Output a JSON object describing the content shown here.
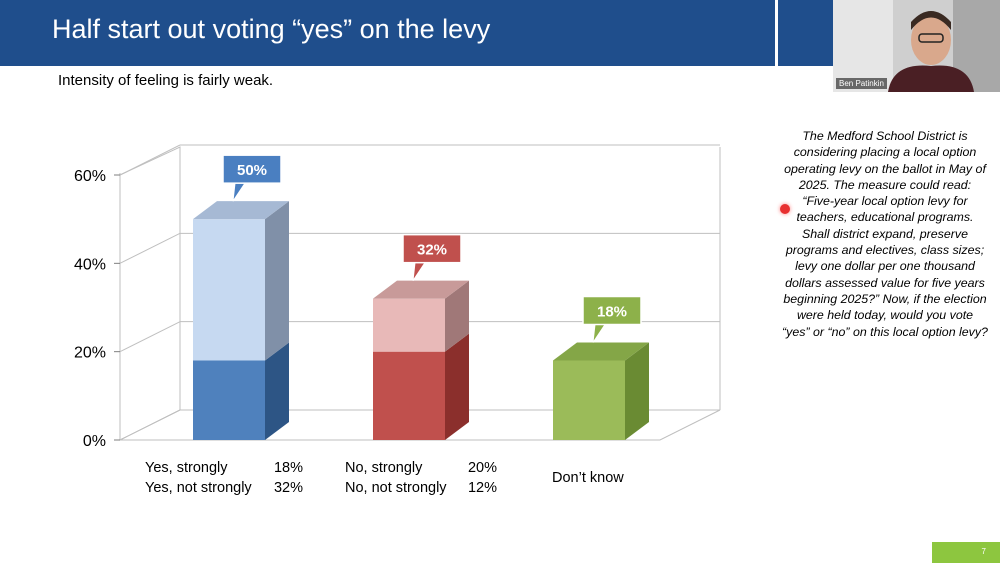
{
  "slide": {
    "title": "Half start out voting “yes” on the levy",
    "subtitle": "Intensity of feeling is fairly weak.",
    "page_number": "7",
    "presenter_name": "Ben Patinkin",
    "question_text": "The Medford School District is considering placing a local option operating levy on the ballot in May of 2025.  The measure could read: “Five-year local option levy for teachers, educational programs.  Shall district expand, preserve programs and electives, class sizes; levy one dollar per one thousand dollars assessed value for five years beginning 2025?” Now, if the election were held today, would you vote “yes” or “no” on this local option levy?"
  },
  "chart_data": {
    "type": "bar",
    "stacked": true,
    "three_d": true,
    "title": "",
    "xlabel": "",
    "ylabel": "",
    "ylim": [
      0,
      60
    ],
    "y_ticks": [
      "0%",
      "20%",
      "40%",
      "60%"
    ],
    "grid": true,
    "categories": [
      "Yes",
      "No",
      "Don't know"
    ],
    "bars": [
      {
        "total_label": "50%",
        "color": "#c00000",
        "segments": [
          {
            "name": "Yes, strongly",
            "label": "Yes, strongly",
            "value": 18,
            "value_label": "18%",
            "color": "#4f81bd",
            "side": "#2d5585",
            "top": "#3a6aa5"
          },
          {
            "name": "Yes, not strongly",
            "label": "Yes, not strongly",
            "value": 32,
            "value_label": "32%",
            "color": "#c6d9f1",
            "side": "#8090a8",
            "top": "#a6b9d4"
          }
        ],
        "callout_color": "#4a7fc1"
      },
      {
        "total_label": "32%",
        "segments": [
          {
            "name": "No, strongly",
            "label": "No, strongly",
            "value": 20,
            "value_label": "20%",
            "color": "#c0504d",
            "side": "#8b2f2c",
            "top": "#a53e3b"
          },
          {
            "name": "No, not strongly",
            "label": "No, not strongly",
            "value": 12,
            "value_label": "12%",
            "color": "#e8b9b8",
            "side": "#a07878",
            "top": "#c89a99"
          }
        ],
        "callout_color": "#c0504d"
      },
      {
        "total_label": "18%",
        "segments": [
          {
            "name": "Don’t know",
            "label": "Don’t know",
            "value": 18,
            "value_label": "",
            "color": "#9bbb59",
            "side": "#6a8b33",
            "top": "#84a647"
          }
        ],
        "callout_color": "#8db14a"
      }
    ]
  }
}
